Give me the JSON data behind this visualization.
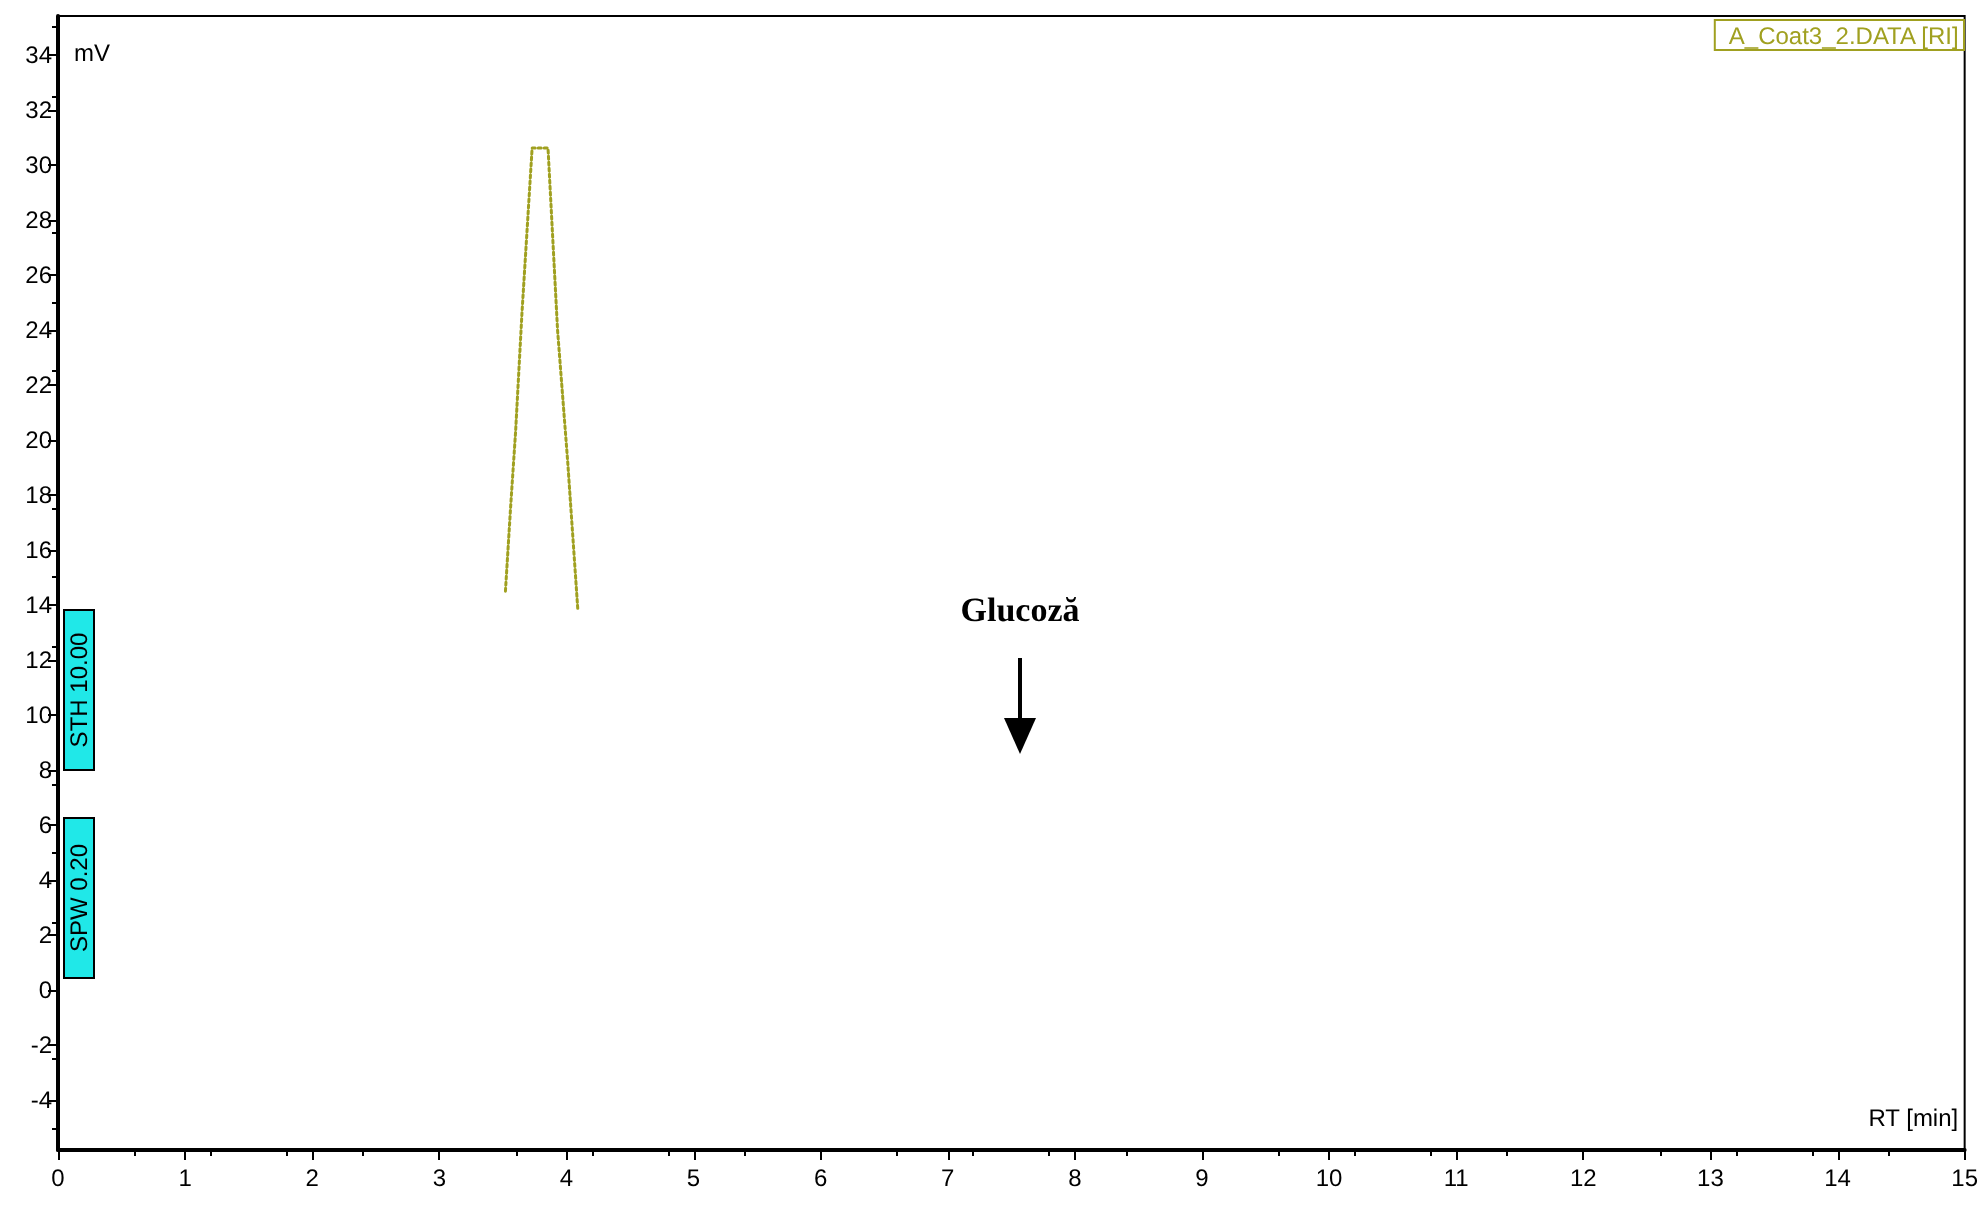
{
  "chart_data": {
    "type": "line",
    "xlabel": "RT [min]",
    "ylabel": "mV",
    "xlim": [
      0,
      15
    ],
    "xticks": [
      0,
      1,
      2,
      3,
      4,
      5,
      6,
      7,
      8,
      9,
      10,
      11,
      12,
      13,
      14,
      15
    ],
    "ylim": [
      -5.8,
      35.4
    ],
    "yticks": [
      -4,
      -2,
      0,
      2,
      4,
      6,
      8,
      10,
      12,
      14,
      16,
      18,
      20,
      22,
      24,
      26,
      28,
      30,
      32,
      34
    ],
    "series": [
      {
        "name": "A_Coat3_2.DATA [RI]",
        "color": "#a0a020",
        "x": [
          3.52,
          3.56,
          3.6,
          3.65,
          3.73,
          3.855,
          3.93,
          4.01,
          4.09
        ],
        "values": [
          14.5,
          17.5,
          20.3,
          24.6,
          30.6,
          30.6,
          24.0,
          19.2,
          13.8
        ]
      }
    ],
    "line_style": "dotted",
    "marker": "none",
    "grid": false,
    "legend": "top right",
    "annotations": [
      "Glucoză",
      "STH 10.00",
      "SPW 0.20"
    ]
  }
}
